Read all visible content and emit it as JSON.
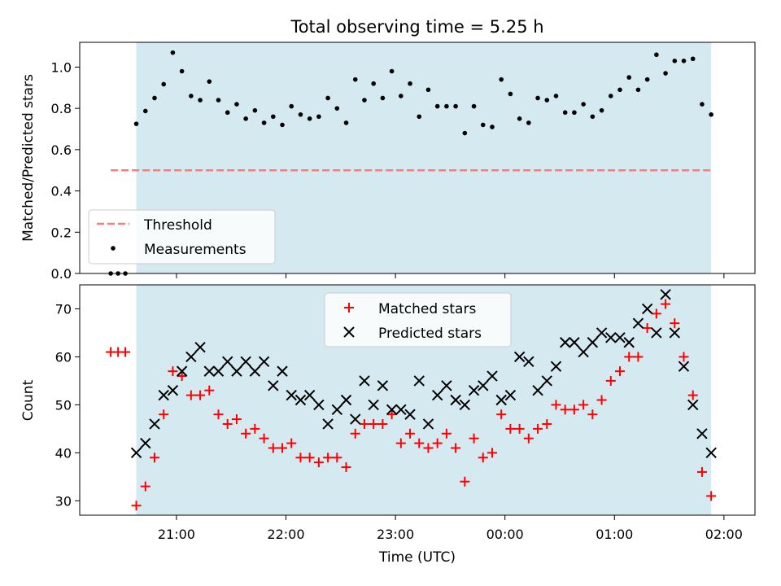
{
  "figure": {
    "title": "Total observing time = 5.25 h",
    "xlabel": "Time (UTC)",
    "x_ticks": [
      "21:00",
      "22:00",
      "23:00",
      "00:00",
      "01:00",
      "02:00"
    ]
  },
  "chart_data": [
    {
      "type": "scatter",
      "ylabel": "Matched/Predicted stars",
      "xlim": [
        "20:07",
        "02:17"
      ],
      "ylim": [
        0,
        1.12
      ],
      "y_ticks": [
        "0.0",
        "0.2",
        "0.4",
        "0.6",
        "0.8",
        "1.0"
      ],
      "observing_window": [
        "20:38",
        "01:53"
      ],
      "observing_window_color": "#d4eaf0",
      "legend": {
        "placement": "lower-left",
        "threshold_label": "Threshold",
        "measurements_label": "Measurements"
      },
      "threshold": {
        "value": 0.5,
        "x_range": [
          "20:24",
          "01:53"
        ],
        "color": "#f08080"
      },
      "measurements": {
        "color": "#000000",
        "times": [
          "20:24",
          "20:28",
          "20:32",
          "20:38",
          "20:43",
          "20:48",
          "20:53",
          "20:58",
          "21:03",
          "21:08",
          "21:13",
          "21:18",
          "21:23",
          "21:28",
          "21:33",
          "21:38",
          "21:43",
          "21:48",
          "21:53",
          "21:58",
          "22:03",
          "22:08",
          "22:13",
          "22:18",
          "22:23",
          "22:28",
          "22:33",
          "22:38",
          "22:43",
          "22:48",
          "22:53",
          "22:58",
          "23:03",
          "23:08",
          "23:13",
          "23:18",
          "23:23",
          "23:28",
          "23:33",
          "23:38",
          "23:43",
          "23:48",
          "23:53",
          "23:58",
          "00:03",
          "00:08",
          "00:13",
          "00:18",
          "00:23",
          "00:28",
          "00:33",
          "00:38",
          "00:43",
          "00:48",
          "00:53",
          "00:58",
          "01:03",
          "01:08",
          "01:13",
          "01:18",
          "01:23",
          "01:28",
          "01:33",
          "01:38",
          "01:43",
          "01:48",
          "01:53"
        ],
        "values": [
          0.0,
          0.0,
          0.0,
          0.725,
          0.787,
          0.85,
          0.917,
          1.07,
          0.98,
          0.86,
          0.84,
          0.93,
          0.84,
          0.78,
          0.82,
          0.75,
          0.79,
          0.73,
          0.76,
          0.72,
          0.81,
          0.77,
          0.75,
          0.76,
          0.85,
          0.8,
          0.73,
          0.94,
          0.84,
          0.92,
          0.85,
          0.98,
          0.86,
          0.92,
          0.76,
          0.89,
          0.81,
          0.81,
          0.81,
          0.68,
          0.81,
          0.72,
          0.71,
          0.94,
          0.87,
          0.75,
          0.73,
          0.85,
          0.84,
          0.86,
          0.78,
          0.78,
          0.82,
          0.76,
          0.79,
          0.86,
          0.89,
          0.95,
          0.89,
          0.94,
          1.06,
          0.97,
          1.03,
          1.03,
          1.04,
          0.82,
          0.77
        ]
      }
    },
    {
      "type": "scatter",
      "ylabel": "Count",
      "xlim": [
        "20:07",
        "02:17"
      ],
      "ylim": [
        27,
        75
      ],
      "y_ticks": [
        "30",
        "40",
        "50",
        "60",
        "70"
      ],
      "observing_window": [
        "20:38",
        "01:53"
      ],
      "observing_window_color": "#d4eaf0",
      "legend": {
        "placement": "upper-center"
      },
      "series": [
        {
          "name": "Matched stars",
          "marker": "+",
          "color": "#ff0000",
          "times": [
            "20:24",
            "20:28",
            "20:32",
            "20:38",
            "20:43",
            "20:48",
            "20:53",
            "20:58",
            "21:03",
            "21:08",
            "21:13",
            "21:18",
            "21:23",
            "21:28",
            "21:33",
            "21:38",
            "21:43",
            "21:48",
            "21:53",
            "21:58",
            "22:03",
            "22:08",
            "22:13",
            "22:18",
            "22:23",
            "22:28",
            "22:33",
            "22:38",
            "22:43",
            "22:48",
            "22:53",
            "22:58",
            "23:03",
            "23:08",
            "23:13",
            "23:18",
            "23:23",
            "23:28",
            "23:33",
            "23:38",
            "23:43",
            "23:48",
            "23:53",
            "23:58",
            "00:03",
            "00:08",
            "00:13",
            "00:18",
            "00:23",
            "00:28",
            "00:33",
            "00:38",
            "00:43",
            "00:48",
            "00:53",
            "00:58",
            "01:03",
            "01:08",
            "01:13",
            "01:18",
            "01:23",
            "01:28",
            "01:33",
            "01:38",
            "01:43",
            "01:48",
            "01:53"
          ],
          "values": [
            61,
            61,
            61,
            29,
            33,
            39,
            48,
            57,
            56,
            52,
            52,
            53,
            48,
            46,
            47,
            44,
            45,
            43,
            41,
            41,
            42,
            39,
            39,
            38,
            39,
            39,
            37,
            44,
            46,
            46,
            46,
            48,
            42,
            44,
            42,
            41,
            42,
            44,
            41,
            34,
            43,
            39,
            40,
            48,
            45,
            45,
            43,
            45,
            46,
            50,
            49,
            49,
            50,
            48,
            51,
            55,
            57,
            60,
            60,
            66,
            69,
            71,
            67,
            60,
            52,
            36,
            31
          ]
        },
        {
          "name": "Predicted stars",
          "marker": "x",
          "color": "#000000",
          "times": [
            "20:38",
            "20:43",
            "20:48",
            "20:53",
            "20:58",
            "21:03",
            "21:08",
            "21:13",
            "21:18",
            "21:23",
            "21:28",
            "21:33",
            "21:38",
            "21:43",
            "21:48",
            "21:53",
            "21:58",
            "22:03",
            "22:08",
            "22:13",
            "22:18",
            "22:23",
            "22:28",
            "22:33",
            "22:38",
            "22:43",
            "22:48",
            "22:53",
            "22:58",
            "23:03",
            "23:08",
            "23:13",
            "23:18",
            "23:23",
            "23:28",
            "23:33",
            "23:38",
            "23:43",
            "23:48",
            "23:53",
            "23:58",
            "00:03",
            "00:08",
            "00:13",
            "00:18",
            "00:23",
            "00:28",
            "00:33",
            "00:38",
            "00:43",
            "00:48",
            "00:53",
            "00:58",
            "01:03",
            "01:08",
            "01:13",
            "01:18",
            "01:23",
            "01:28",
            "01:33",
            "01:38",
            "01:43",
            "01:48",
            "01:53"
          ],
          "values": [
            40,
            42,
            46,
            52,
            53,
            57,
            60,
            62,
            57,
            57,
            59,
            57,
            59,
            57,
            59,
            54,
            57,
            52,
            51,
            52,
            50,
            46,
            49,
            51,
            47,
            55,
            50,
            54,
            49,
            49,
            48,
            55,
            46,
            52,
            54,
            51,
            50,
            53,
            54,
            56,
            51,
            52,
            60,
            59,
            53,
            55,
            58,
            63,
            63,
            61,
            63,
            65,
            64,
            64,
            63,
            67,
            70,
            65,
            73,
            65,
            58,
            50,
            44,
            40
          ]
        }
      ]
    }
  ]
}
